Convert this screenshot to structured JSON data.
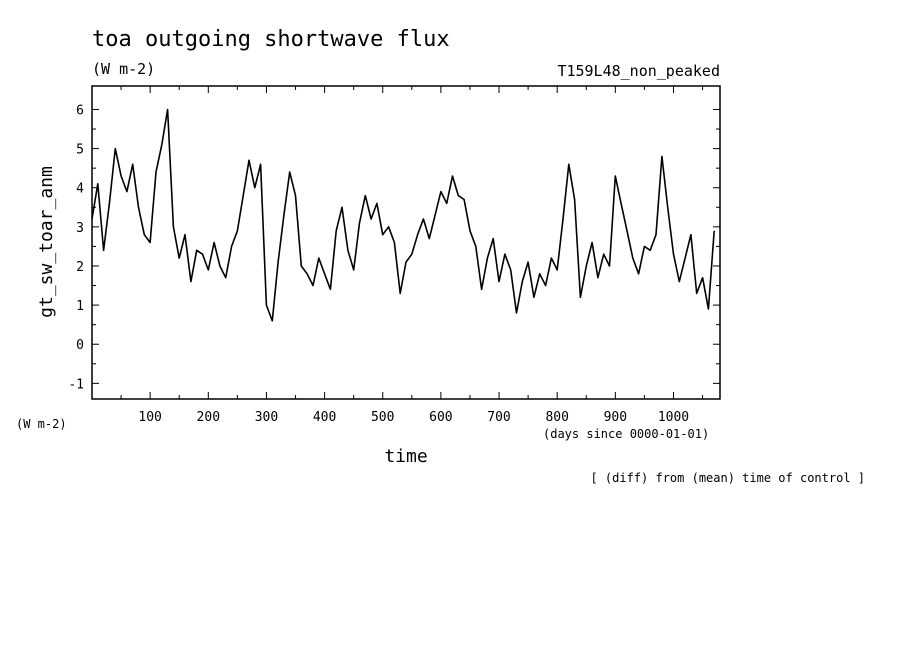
{
  "chart_data": {
    "type": "line",
    "title": "toa outgoing shortwave flux",
    "units": "(W m-2)",
    "run_label": "T159L48_non_peaked",
    "xlabel": "time",
    "x_units": "(days since 0000-01-01)",
    "ylabel": "gt_sw_toar_anm",
    "y_units": "(W m-2)",
    "footnote": "[ (diff) from (mean) time of control ]",
    "xlim": [
      0,
      1080
    ],
    "ylim": [
      -1.4,
      6.6
    ],
    "x_ticks": [
      "100",
      "200",
      "300",
      "400",
      "500",
      "600",
      "700",
      "800",
      "900",
      "1000"
    ],
    "y_ticks": [
      "-1",
      "0",
      "1",
      "2",
      "3",
      "4",
      "5",
      "6"
    ],
    "grid": false,
    "line_color": "#000000",
    "series": [
      {
        "x": [
          0,
          10,
          20,
          30,
          40,
          50,
          60,
          70,
          80,
          90,
          100,
          110,
          120,
          130,
          140,
          150,
          160,
          170,
          180,
          190,
          200,
          210,
          220,
          230,
          240,
          250,
          260,
          270,
          280,
          290,
          300,
          310,
          320,
          330,
          340,
          350,
          360,
          370,
          380,
          390,
          400,
          410,
          420,
          430,
          440,
          450,
          460,
          470,
          480,
          490,
          500,
          510,
          520,
          530,
          540,
          550,
          560,
          570,
          580,
          590,
          600,
          610,
          620,
          630,
          640,
          650,
          660,
          670,
          680,
          690,
          700,
          710,
          720,
          730,
          740,
          750,
          760,
          770,
          780,
          790,
          800,
          810,
          820,
          830,
          840,
          850,
          860,
          870,
          880,
          890,
          900,
          910,
          920,
          930,
          940,
          950,
          960,
          970,
          980,
          990,
          1000,
          1010,
          1020,
          1030,
          1040,
          1050,
          1060,
          1070
        ],
        "y": [
          3.2,
          4.1,
          2.4,
          3.6,
          5.0,
          4.3,
          3.9,
          4.6,
          3.5,
          2.8,
          2.6,
          4.4,
          5.1,
          6.0,
          3.0,
          2.2,
          2.8,
          1.6,
          2.4,
          2.3,
          1.9,
          2.6,
          2.0,
          1.7,
          2.5,
          2.9,
          3.8,
          4.7,
          4.0,
          4.6,
          1.0,
          0.6,
          2.1,
          3.3,
          4.4,
          3.8,
          2.0,
          1.8,
          1.5,
          2.2,
          1.8,
          1.4,
          2.9,
          3.5,
          2.4,
          1.9,
          3.1,
          3.8,
          3.2,
          3.6,
          2.8,
          3.0,
          2.6,
          1.3,
          2.1,
          2.3,
          2.8,
          3.2,
          2.7,
          3.3,
          3.9,
          3.6,
          4.3,
          3.8,
          3.7,
          2.9,
          2.5,
          1.4,
          2.2,
          2.7,
          1.6,
          2.3,
          1.9,
          0.8,
          1.6,
          2.1,
          1.2,
          1.8,
          1.5,
          2.2,
          1.9,
          3.2,
          4.6,
          3.7,
          1.2,
          2.0,
          2.6,
          1.7,
          2.3,
          2.0,
          4.3,
          3.6,
          2.9,
          2.2,
          1.8,
          2.5,
          2.4,
          2.8,
          4.8,
          3.5,
          2.3,
          1.6,
          2.2,
          2.8,
          1.3,
          1.7,
          0.9,
          2.9
        ]
      }
    ]
  }
}
